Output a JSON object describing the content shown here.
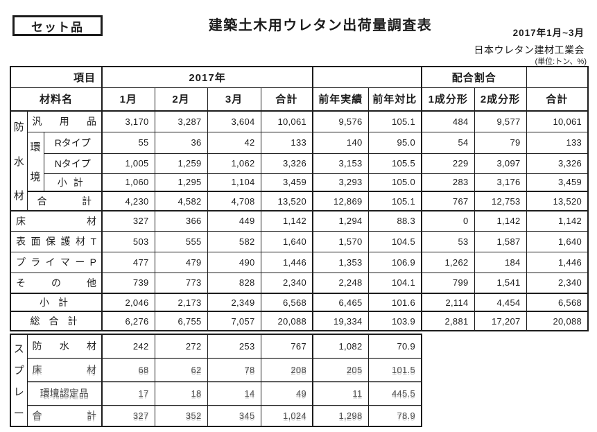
{
  "doc": {
    "tag_label": "セット品",
    "title": "建築土木用ウレタン出荷量調査表",
    "period": "2017年1月~3月",
    "org": "日本ウレタン建材工業会",
    "unit": "(単位:トン、%)"
  },
  "header": {
    "item": "項目",
    "material": "材料名",
    "year_group": "2017年",
    "blend_group": "配合割合",
    "cols": [
      "1月",
      "2月",
      "3月",
      "合計",
      "前年実績",
      "前年対比",
      "1成分形",
      "2成分形",
      "合計"
    ]
  },
  "groups": {
    "bousui": "防水材",
    "kankyo": "環境",
    "spray": "スプレー"
  },
  "rows": {
    "hanyo": {
      "label": "汎用品",
      "v": [
        "3,170",
        "3,287",
        "3,604",
        "10,061",
        "9,576",
        "105.1",
        "484",
        "9,577",
        "10,061"
      ]
    },
    "rtype": {
      "label": "Rタイプ",
      "v": [
        "55",
        "36",
        "42",
        "133",
        "140",
        "95.0",
        "54",
        "79",
        "133"
      ]
    },
    "ntype": {
      "label": "Nタイプ",
      "v": [
        "1,005",
        "1,259",
        "1,062",
        "3,326",
        "3,153",
        "105.5",
        "229",
        "3,097",
        "3,326"
      ]
    },
    "shokei1": {
      "label": "小計",
      "v": [
        "1,060",
        "1,295",
        "1,104",
        "3,459",
        "3,293",
        "105.0",
        "283",
        "3,176",
        "3,459"
      ]
    },
    "gokei1": {
      "label": "合計",
      "v": [
        "4,230",
        "4,582",
        "4,708",
        "13,520",
        "12,869",
        "105.1",
        "767",
        "12,753",
        "13,520"
      ]
    },
    "yuka": {
      "label": "床材",
      "v": [
        "327",
        "366",
        "449",
        "1,142",
        "1,294",
        "88.3",
        "0",
        "1,142",
        "1,142"
      ]
    },
    "hyomen": {
      "label": "表面保護材T",
      "v": [
        "503",
        "555",
        "582",
        "1,640",
        "1,570",
        "104.5",
        "53",
        "1,587",
        "1,640"
      ]
    },
    "primer": {
      "label": "プライマーP",
      "v": [
        "477",
        "479",
        "490",
        "1,446",
        "1,353",
        "106.9",
        "1,262",
        "184",
        "1,446"
      ]
    },
    "sonota": {
      "label": "その他",
      "v": [
        "739",
        "773",
        "828",
        "2,340",
        "2,248",
        "104.1",
        "799",
        "1,541",
        "2,340"
      ]
    },
    "shokei2": {
      "label": "小計",
      "v": [
        "2,046",
        "2,173",
        "2,349",
        "6,568",
        "6,465",
        "101.6",
        "2,114",
        "4,454",
        "6,568"
      ]
    },
    "sogokei": {
      "label": "総合計",
      "v": [
        "6,276",
        "6,755",
        "7,057",
        "20,088",
        "19,334",
        "103.9",
        "2,881",
        "17,207",
        "20,088"
      ]
    }
  },
  "spray_rows": {
    "bousui": {
      "label": "防水材",
      "v": [
        "242",
        "272",
        "253",
        "767",
        "1,082",
        "70.9"
      ]
    },
    "yuka": {
      "label": "床材",
      "v": [
        "68",
        "62",
        "78",
        "208",
        "205",
        "101.5"
      ]
    },
    "kankyo": {
      "label": "環境認定品",
      "v": [
        "17",
        "18",
        "14",
        "49",
        "11",
        "445.5"
      ]
    },
    "gokei": {
      "label": "合計",
      "v": [
        "327",
        "352",
        "345",
        "1,024",
        "1,298",
        "78.9"
      ]
    }
  }
}
